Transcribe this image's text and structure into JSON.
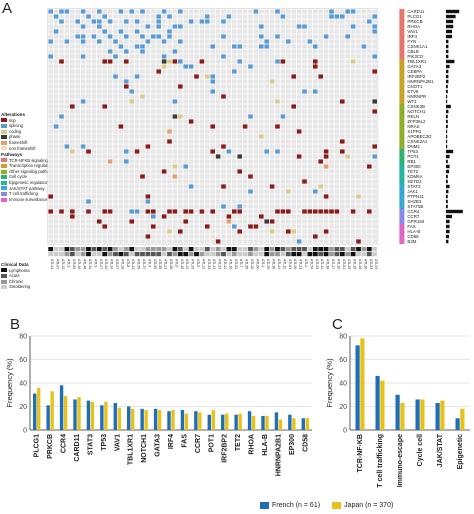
{
  "panels": {
    "a": "A",
    "b": "B",
    "c": "C"
  },
  "legend": {
    "alterations_title": "Alterations",
    "alterations": [
      {
        "label": "snp",
        "color": "#8b1a1a"
      },
      {
        "label": "splicing",
        "color": "#5b9bd5"
      },
      {
        "label": "coding",
        "color": "#d9c98a"
      },
      {
        "label": "phase",
        "color": "#3a3a3a"
      },
      {
        "label": "frameshift",
        "color": "#e0a070"
      },
      {
        "label": "non frameshift",
        "color": "#f2e0b8"
      }
    ],
    "pathways_title": "Pathways",
    "pathways": [
      {
        "label": "TCR-NFKB signaling",
        "color": "#e8756b"
      },
      {
        "label": "Transcription regulation",
        "color": "#c9a227"
      },
      {
        "label": "Other signaling pathways",
        "color": "#8fae2a"
      },
      {
        "label": "Cell cycle",
        "color": "#2db36b"
      },
      {
        "label": "Epigenetic regulation",
        "color": "#25b3a8"
      },
      {
        "label": "JAK/STAT pathway",
        "color": "#3aa7d9"
      },
      {
        "label": "T cell trafficking",
        "color": "#8a8ae6"
      },
      {
        "label": "Immune surveillance",
        "color": "#e064c9"
      }
    ],
    "clinical_title": "Clinical Data",
    "clinical": [
      {
        "label": "Lymphoma",
        "color": "#111111"
      },
      {
        "label": "Acute",
        "color": "#555555"
      },
      {
        "label": "Chronic",
        "color": "#999999"
      },
      {
        "label": "Smoldering",
        "color": "#cccccc"
      }
    ]
  },
  "oncoprint": {
    "genes": [
      "CARD11",
      "PLCG1",
      "PRKCB",
      "RHOA",
      "VAV1",
      "IRF4",
      "FYN",
      "CSNK1A1",
      "CBLB",
      "PIK3CD",
      "TBL1XR1",
      "GATA3",
      "CEBPA",
      "IRF2BP2",
      "HNRNPA2B1",
      "CNOT1",
      "ETV6",
      "HNRNPR",
      "WT1",
      "CSNK2B",
      "NOTCH1",
      "RELN",
      "ZFP36L2",
      "NRAS",
      "S1PR1",
      "APOBEC3G",
      "CSNK2A1",
      "DNM2",
      "TP53",
      "POT1",
      "RB1",
      "EP300",
      "TET2",
      "KDM6A",
      "SETD2",
      "STAT3",
      "JAK1",
      "PTPN11",
      "SH2B3",
      "STAT5B",
      "CCR4",
      "CCR7",
      "GPR183",
      "FAS",
      "HLA-B",
      "CD58",
      "B2M"
    ],
    "pathway_groups": [
      {
        "start": 0,
        "end": 9,
        "color": "#e8756b"
      },
      {
        "start": 10,
        "end": 18,
        "color": "#c9a227"
      },
      {
        "start": 19,
        "end": 27,
        "color": "#8fae2a"
      },
      {
        "start": 28,
        "end": 30,
        "color": "#2db36b"
      },
      {
        "start": 31,
        "end": 34,
        "color": "#25b3a8"
      },
      {
        "start": 35,
        "end": 39,
        "color": "#3aa7d9"
      },
      {
        "start": 40,
        "end": 42,
        "color": "#8a8ae6"
      },
      {
        "start": 43,
        "end": 46,
        "color": "#e064c9"
      }
    ],
    "frequency_bars": [
      22,
      16,
      12,
      12,
      10,
      10,
      4,
      4,
      4,
      4,
      14,
      6,
      4,
      4,
      4,
      3,
      3,
      2,
      2,
      8,
      4,
      3,
      3,
      3,
      2,
      2,
      2,
      2,
      12,
      6,
      3,
      6,
      5,
      3,
      3,
      6,
      4,
      3,
      3,
      3,
      28,
      10,
      6,
      6,
      6,
      5,
      4
    ],
    "sample_labels": [
      "ATL41",
      "ATL47",
      "ATL32",
      "ATL3",
      "ATL50",
      "ATL18",
      "ATL46",
      "ATL34",
      "ATL9",
      "ATL27",
      "ATL40",
      "ATL14",
      "ATL57",
      "ATL28",
      "ATL8",
      "ATL13",
      "ATL59",
      "ATL37",
      "ATL4",
      "ATL55",
      "ATL56",
      "ATL21",
      "ATL58",
      "ATL6",
      "ATL15",
      "ATL24",
      "ATL29",
      "ATL5",
      "ATL22",
      "ATL33",
      "ATL43",
      "ATL31",
      "ATL42",
      "ATL16",
      "ATL52",
      "ATL7",
      "ATL35",
      "ATL20",
      "ATL60",
      "ATL1",
      "ATL39",
      "ATL36",
      "ATL44",
      "ATL11",
      "ATL61",
      "ATL26",
      "ATL23",
      "ATL2",
      "ATL54",
      "ATL45",
      "ATL12",
      "ATL38",
      "ATL17",
      "ATL10",
      "ATL51",
      "ATL25",
      "ATL19",
      "ATL48",
      "ATL30",
      "ATL53",
      "ATL49"
    ],
    "n_samples": 61,
    "clinical_rows": 2
  },
  "chart_data": [
    {
      "type": "bar",
      "panel": "B",
      "categories": [
        "PLCG1",
        "PRKCB",
        "CCR4",
        "CARD11",
        "STAT3",
        "TP53",
        "VAV1",
        "TBL1XR1",
        "NOTCH1",
        "GATA3",
        "IRF4",
        "FAS",
        "CCR7",
        "POT1",
        "IRF2BP2",
        "TET2",
        "RHOA",
        "HLA-B",
        "HNRNPA2B1",
        "EP300",
        "CD58"
      ],
      "series": [
        {
          "name": "French (n = 61)",
          "color": "#1f6fb5",
          "values": [
            31,
            21,
            38,
            26,
            25,
            21,
            23,
            20,
            18,
            18,
            16,
            17,
            16,
            13,
            13,
            13,
            16,
            12,
            15,
            13,
            10
          ]
        },
        {
          "name": "Japan (n = 370)",
          "color": "#e8c21a",
          "values": [
            36,
            33,
            29,
            28,
            24,
            24,
            19,
            18,
            17,
            17,
            17,
            14,
            15,
            17,
            14,
            14,
            12,
            12,
            9,
            10,
            10
          ]
        }
      ],
      "xlabel": "",
      "ylabel": "Frequency (%)",
      "ylim": [
        0,
        80
      ],
      "yticks": [
        0,
        20,
        40,
        60,
        80
      ],
      "grid": true
    },
    {
      "type": "bar",
      "panel": "C",
      "categories": [
        "TCR-NF-KB",
        "T cell trafficking",
        "Immuno-escape",
        "Cycle cell",
        "JAK/STAT",
        "Epigenetic"
      ],
      "series": [
        {
          "name": "French (n = 61)",
          "color": "#1f6fb5",
          "values": [
            72,
            46,
            30,
            26,
            23,
            10
          ]
        },
        {
          "name": "Japan (n = 370)",
          "color": "#e8c21a",
          "values": [
            78,
            42,
            23,
            26,
            25,
            18
          ]
        }
      ],
      "xlabel": "",
      "ylabel": "Frequency (%)",
      "ylim": [
        0,
        80
      ],
      "yticks": [
        0,
        20,
        40,
        60,
        80
      ],
      "grid": true
    }
  ],
  "bottom_legend": [
    {
      "label": "French (n = 61)",
      "color": "#1f6fb5"
    },
    {
      "label": "Japan (n = 370)",
      "color": "#e8c21a"
    }
  ]
}
